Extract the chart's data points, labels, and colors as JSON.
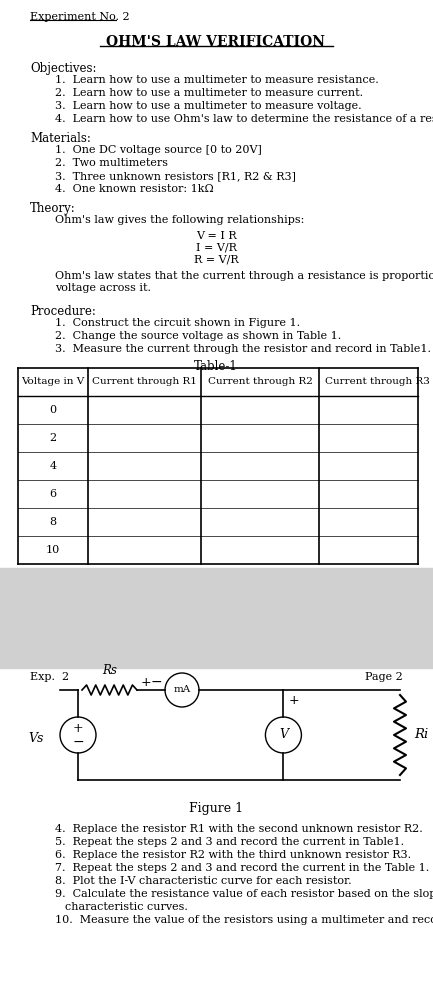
{
  "title": "OHM'S LAW VERIFICATION",
  "experiment_label": "Experiment No. 2",
  "page2_label": "Exp.  2",
  "page2_right": "Page 2",
  "objectives_label": "Objectives:",
  "objectives": [
    "Learn how to use a multimeter to measure resistance.",
    "Learn how to use a multimeter to measure current.",
    "Learn how to use a multimeter to measure voltage.",
    "Learn how to use Ohm's law to determine the resistance of a resistor."
  ],
  "materials_label": "Materials:",
  "materials": [
    "One DC voltage source [0 to 20V]",
    "Two multimeters",
    "Three unknown resistors [R1, R2 & R3]",
    "One known resistor: 1kΩ"
  ],
  "theory_label": "Theory:",
  "theory_intro": "Ohm's law gives the following relationships:",
  "theory_equations": [
    "V = I R",
    "I = V/R",
    "R = V/R"
  ],
  "theory_statement": "Ohm's law states that the current through a resistance is proportional to the\nvoltage across it.",
  "procedure_label": "Procedure:",
  "procedure": [
    "Construct the circuit shown in Figure 1.",
    "Change the source voltage as shown in Table 1.",
    "Measure the current through the resistor and record in Table1."
  ],
  "table_title": "Table-1",
  "table_headers": [
    "Voltage in V",
    "Current through R1",
    "Current through R2",
    "Current through R3"
  ],
  "table_voltage": [
    "0",
    "2",
    "4",
    "6",
    "8",
    "10"
  ],
  "figure_label": "Figure 1",
  "page2_procedures": [
    "Replace the resistor R1 with the second unknown resistor R2.",
    "Repeat the steps 2 and 3 and record the current in Table1.",
    "Replace the resistor R2 with the third unknown resistor R3.",
    "Repeat the steps 2 and 3 and record the current in the Table 1.",
    "Plot the I-V characteristic curve for each resistor.",
    "Calculate the resistance value of each resistor based on the slope of the I-V\ncharacteristic curves.",
    "Measure the value of the resistors using a multimeter and record the value"
  ],
  "page2_numbering": [
    4,
    5,
    6,
    7,
    8,
    9,
    10
  ],
  "bg_color": "#ffffff",
  "text_color": "#000000",
  "font_size": 8,
  "title_font_size": 10
}
